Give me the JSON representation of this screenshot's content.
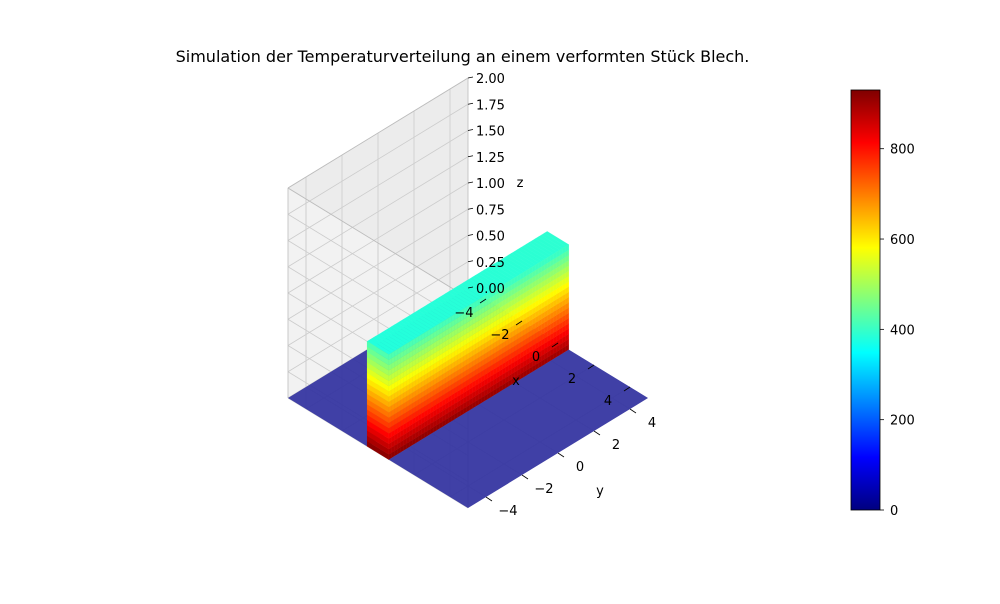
{
  "chart_data": {
    "type": "surface3d",
    "title": "Simulation der Temperaturverteilung an einem verformten Stück Blech.",
    "xlabel": "x",
    "ylabel": "y",
    "zlabel": "z",
    "xlim": [
      -5,
      5
    ],
    "ylim": [
      -5,
      5
    ],
    "zlim": [
      0,
      2
    ],
    "x_ticks": [
      "4",
      "2",
      "0",
      "−2",
      "−4"
    ],
    "x_tick_values": [
      4,
      2,
      0,
      -2,
      -4
    ],
    "y_ticks": [
      "−4",
      "−2",
      "0",
      "2",
      "4"
    ],
    "y_tick_values": [
      -4,
      -2,
      0,
      2,
      4
    ],
    "z_ticks": [
      "0.00",
      "0.25",
      "0.50",
      "0.75",
      "1.00",
      "1.25",
      "1.50",
      "2.00"
    ],
    "z_tick_values": [
      0,
      0.25,
      0.5,
      0.75,
      1.0,
      1.25,
      1.5,
      2.0
    ],
    "z_tick_extra_label": "1.75",
    "colormap": "jet",
    "colorbar": {
      "min": 0,
      "max": 930,
      "ticks": [
        "0",
        "200",
        "400",
        "600",
        "800"
      ],
      "tick_values": [
        0,
        200,
        400,
        600,
        800
      ],
      "colors": [
        "#00007f",
        "#0000ff",
        "#007fff",
        "#00ffff",
        "#7fff7f",
        "#ffff00",
        "#ff7f00",
        "#ff0000",
        "#7f0000"
      ]
    },
    "surface": {
      "x_range": [
        -5,
        5
      ],
      "y_range": [
        -5,
        5
      ],
      "ridge_x_range": [
        -0.6,
        0.6
      ],
      "ridge_height": 1.0,
      "floor_height": 0,
      "floor_color": "#2e2e9e",
      "ridge_temperature_min": 380,
      "ridge_temperature_max": 930
    },
    "grid": true,
    "pane_color": "#f2f2f2",
    "grid_color": "#cccccc"
  }
}
